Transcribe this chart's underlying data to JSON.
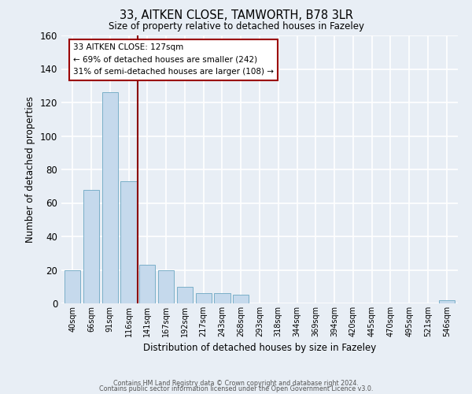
{
  "title": "33, AITKEN CLOSE, TAMWORTH, B78 3LR",
  "subtitle": "Size of property relative to detached houses in Fazeley",
  "xlabel": "Distribution of detached houses by size in Fazeley",
  "ylabel": "Number of detached properties",
  "bar_labels": [
    "40sqm",
    "66sqm",
    "91sqm",
    "116sqm",
    "141sqm",
    "167sqm",
    "192sqm",
    "217sqm",
    "243sqm",
    "268sqm",
    "293sqm",
    "318sqm",
    "344sqm",
    "369sqm",
    "394sqm",
    "420sqm",
    "445sqm",
    "470sqm",
    "495sqm",
    "521sqm",
    "546sqm"
  ],
  "bar_values": [
    20,
    68,
    126,
    73,
    23,
    20,
    10,
    6,
    6,
    5,
    0,
    0,
    0,
    0,
    0,
    0,
    0,
    0,
    0,
    0,
    2
  ],
  "bar_color": "#c5d9ec",
  "bar_edge_color": "#7aafc8",
  "background_color": "#e8eef5",
  "grid_color": "#ffffff",
  "ylim": [
    0,
    160
  ],
  "yticks": [
    0,
    20,
    40,
    60,
    80,
    100,
    120,
    140,
    160
  ],
  "property_line_x": 3.5,
  "property_line_color": "#8b0000",
  "annotation_line1": "33 AITKEN CLOSE: 127sqm",
  "annotation_line2": "← 69% of detached houses are smaller (242)",
  "annotation_line3": "31% of semi-detached houses are larger (108) →",
  "footer_line1": "Contains HM Land Registry data © Crown copyright and database right 2024.",
  "footer_line2": "Contains public sector information licensed under the Open Government Licence v3.0."
}
